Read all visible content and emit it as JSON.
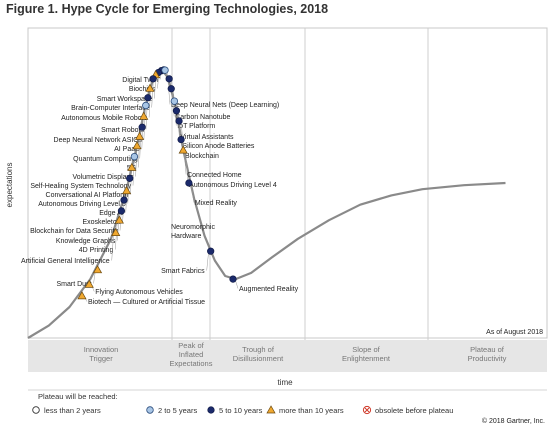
{
  "chart_data": {
    "type": "scatter",
    "title": "Figure 1. Hype Cycle for Emerging Technologies, 2018",
    "xlabel": "time",
    "ylabel": "expectations",
    "as_of": "As of August 2018",
    "phases": [
      "Innovation Trigger",
      "Peak of Inflated Expectations",
      "Trough of Disillusionment",
      "Slope of Enlightenment",
      "Plateau of Productivity"
    ],
    "legend_title": "Plateau will be reached:",
    "legend": [
      {
        "key": "lt2",
        "label": "less than 2 years"
      },
      {
        "key": "2to5",
        "label": "2 to 5 years"
      },
      {
        "key": "5to10",
        "label": "5 to 10 years"
      },
      {
        "key": "gt10",
        "label": "more than 10 years"
      },
      {
        "key": "obs",
        "label": "obsolete before plateau"
      }
    ],
    "copyright": "© 2018 Gartner, Inc.",
    "curve": [
      [
        0,
        0
      ],
      [
        4,
        4
      ],
      [
        8,
        10
      ],
      [
        12,
        19
      ],
      [
        16,
        32
      ],
      [
        19,
        48
      ],
      [
        21,
        62
      ],
      [
        22.5,
        74
      ],
      [
        24,
        83
      ],
      [
        25.5,
        87
      ],
      [
        27,
        84
      ],
      [
        28.5,
        74
      ],
      [
        30,
        60
      ],
      [
        32,
        45
      ],
      [
        34,
        33
      ],
      [
        36,
        25
      ],
      [
        38,
        20
      ],
      [
        40,
        19
      ],
      [
        43,
        21
      ],
      [
        47,
        26
      ],
      [
        52,
        32
      ],
      [
        58,
        38
      ],
      [
        64,
        43
      ],
      [
        70,
        46
      ],
      [
        76,
        48
      ],
      [
        84,
        49.3
      ],
      [
        92,
        50
      ]
    ],
    "points": [
      {
        "name": "Digital Twin",
        "x": 26.2,
        "y": 86.5,
        "cat": "5to10",
        "side": "left"
      },
      {
        "name": "Biochips",
        "x": 25.7,
        "y": 86.2,
        "cat": "5to10",
        "side": "left"
      },
      {
        "name": "Smart Workspace",
        "x": 25.1,
        "y": 85.6,
        "cat": "5to10",
        "side": "left"
      },
      {
        "name": "Brain-Computer Interface",
        "x": 24.6,
        "y": 84.9,
        "cat": "gt10",
        "side": "left"
      },
      {
        "name": "Autonomous Mobile Robots",
        "x": 24.1,
        "y": 83.6,
        "cat": "5to10",
        "side": "left"
      },
      {
        "name": "Smart Robots",
        "x": 23.5,
        "y": 80.5,
        "cat": "gt10",
        "side": "left"
      },
      {
        "name": "Deep Neural Network ASICs",
        "x": 23.1,
        "y": 77.5,
        "cat": "5to10",
        "side": "left"
      },
      {
        "name": "AI PaaS",
        "x": 22.7,
        "y": 75.0,
        "cat": "2to5",
        "side": "left"
      },
      {
        "name": "Quantum Computing",
        "x": 22.3,
        "y": 71.5,
        "cat": "gt10",
        "side": "left"
      },
      {
        "name": "5G",
        "x": 22.0,
        "y": 68.0,
        "cat": "5to10",
        "side": "left"
      },
      {
        "name": "Volumetric Displays",
        "x": 21.5,
        "y": 65.0,
        "cat": "gt10",
        "side": "left"
      },
      {
        "name": "Self-Healing System Technology",
        "x": 21.0,
        "y": 62.0,
        "cat": "gt10",
        "side": "left"
      },
      {
        "name": "Conversational AI Platform",
        "x": 20.5,
        "y": 58.5,
        "cat": "2to5",
        "side": "left"
      },
      {
        "name": "Autonomous Driving Level 5",
        "x": 20.0,
        "y": 55.0,
        "cat": "gt10",
        "side": "left"
      },
      {
        "name": "Edge AI",
        "x": 19.6,
        "y": 51.5,
        "cat": "5to10",
        "side": "left"
      },
      {
        "name": "Exoskeleton",
        "x": 19.0,
        "y": 47.5,
        "cat": "gt10",
        "side": "left"
      },
      {
        "name": "Blockchain for Data Security",
        "x": 18.5,
        "y": 44.5,
        "cat": "5to10",
        "side": "left"
      },
      {
        "name": "Knowledge Graphs",
        "x": 18.0,
        "y": 41.0,
        "cat": "5to10",
        "side": "left"
      },
      {
        "name": "4D Printing",
        "x": 17.6,
        "y": 38.0,
        "cat": "gt10",
        "side": "left"
      },
      {
        "name": "Artificial General Intelligence",
        "x": 16.9,
        "y": 34.0,
        "cat": "gt10",
        "side": "left"
      },
      {
        "name": "Smart Dust",
        "x": 13.4,
        "y": 22.0,
        "cat": "gt10",
        "side": "left"
      },
      {
        "name": "Flying Autonomous Vehicles",
        "x": 11.8,
        "y": 17.3,
        "cat": "gt10",
        "side": "right"
      },
      {
        "name": "Biotech — Cultured or Artificial Tissue",
        "x": 10.4,
        "y": 13.6,
        "cat": "gt10",
        "side": "right"
      },
      {
        "name": "Deep Neural Nets (Deep Learning)",
        "x": 26.4,
        "y": 86.4,
        "cat": "2to5",
        "side": "right"
      },
      {
        "name": "Carbon Nanotube",
        "x": 27.2,
        "y": 83.6,
        "cat": "5to10",
        "side": "right"
      },
      {
        "name": "IoT Platform",
        "x": 27.6,
        "y": 80.4,
        "cat": "5to10",
        "side": "right"
      },
      {
        "name": "Virtual Assistants",
        "x": 28.2,
        "y": 76.4,
        "cat": "2to5",
        "side": "right"
      },
      {
        "name": "Silicon Anode Batteries",
        "x": 28.6,
        "y": 73.3,
        "cat": "5to10",
        "side": "right"
      },
      {
        "name": "Blockchain",
        "x": 29.1,
        "y": 70.0,
        "cat": "5to10",
        "side": "right"
      },
      {
        "name": "Connected Home",
        "x": 29.5,
        "y": 64.0,
        "cat": "5to10",
        "side": "right"
      },
      {
        "name": "Autonomous Driving Level 4",
        "x": 29.9,
        "y": 60.6,
        "cat": "gt10",
        "side": "right"
      },
      {
        "name": "Mixed Reality",
        "x": 31.0,
        "y": 50.0,
        "cat": "5to10",
        "side": "right"
      },
      {
        "name": "Smart Fabrics",
        "x": 35.2,
        "y": 28.0,
        "cat": "5to10",
        "side": "left"
      },
      {
        "name": "Augmented Reality",
        "x": 39.5,
        "y": 19.0,
        "cat": "5to10",
        "side": "right"
      }
    ]
  },
  "annotations": {
    "neuromorphic": "Neuromorphic Hardware"
  },
  "colors": {
    "navy": "#1b2a6b",
    "light_blue": "#a9c6e6",
    "triangle": "#f0a830",
    "curve": "#8a8a8a",
    "band": "#e6e6e6",
    "divider": "#cfcfcf"
  }
}
